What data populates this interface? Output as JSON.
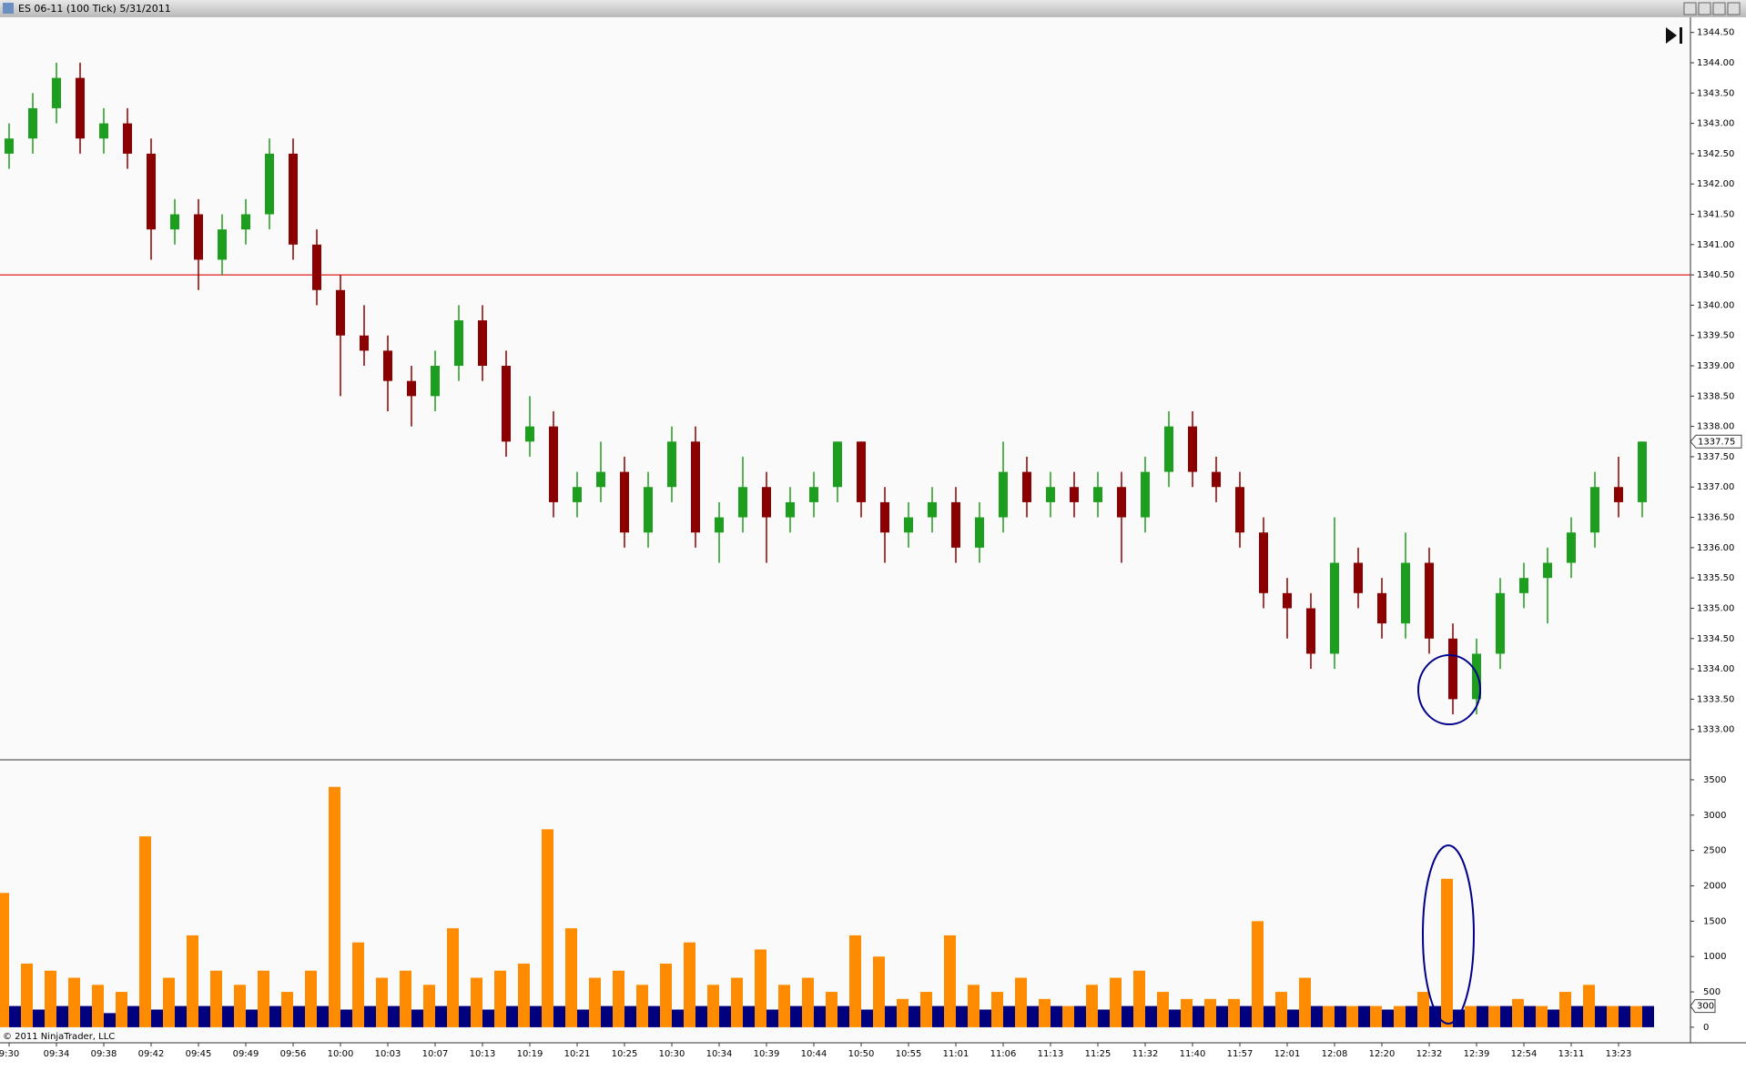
{
  "window": {
    "title": "ES 06-11 (100 Tick)  5/31/2011",
    "copyright": "© 2011 NinjaTrader, LLC"
  },
  "chart_data": [
    {
      "type": "candlestick",
      "ylim": [
        1332.5,
        1344.75
      ],
      "yticks": [
        {
          "value": 1333,
          "label": "1333.00"
        },
        {
          "value": 1333.5,
          "label": "1333.50"
        },
        {
          "value": 1334,
          "label": "1334.00"
        },
        {
          "value": 1334.5,
          "label": "1334.50"
        },
        {
          "value": 1335,
          "label": "1335.00"
        },
        {
          "value": 1335.5,
          "label": "1335.50"
        },
        {
          "value": 1336,
          "label": "1336.00"
        },
        {
          "value": 1336.5,
          "label": "1336.50"
        },
        {
          "value": 1337,
          "label": "1337.00"
        },
        {
          "value": 1337.5,
          "label": "1337.50"
        },
        {
          "value": 1338,
          "label": "1338.00"
        },
        {
          "value": 1338.5,
          "label": "1338.50"
        },
        {
          "value": 1339,
          "label": "1339.00"
        },
        {
          "value": 1339.5,
          "label": "1339.50"
        },
        {
          "value": 1340,
          "label": "1340.00"
        },
        {
          "value": 1340.5,
          "label": "1340.50"
        },
        {
          "value": 1341,
          "label": "1341.00"
        },
        {
          "value": 1341.5,
          "label": "1341.50"
        },
        {
          "value": 1342,
          "label": "1342.00"
        },
        {
          "value": 1342.5,
          "label": "1342.50"
        },
        {
          "value": 1343,
          "label": "1343.00"
        },
        {
          "value": 1343.5,
          "label": "1343.50"
        },
        {
          "value": 1344,
          "label": "1344.00"
        },
        {
          "value": 1344.5,
          "label": "1344.50"
        }
      ],
      "up_color": "#1e9e1e",
      "down_color": "#8b0000",
      "reference_line": {
        "value": 1340.5,
        "color": "#e02020"
      },
      "last_price": {
        "value": 1337.75,
        "label": "1337.75"
      },
      "ohlc": [
        [
          1342.5,
          1343,
          1342.25,
          1342.75
        ],
        [
          1342.75,
          1343.5,
          1342.5,
          1343.25
        ],
        [
          1343.25,
          1344,
          1343,
          1343.75
        ],
        [
          1343.75,
          1344,
          1342.5,
          1342.75
        ],
        [
          1342.75,
          1343.25,
          1342.5,
          1343
        ],
        [
          1343,
          1343.25,
          1342.25,
          1342.5
        ],
        [
          1342.5,
          1342.75,
          1340.75,
          1341.25
        ],
        [
          1341.25,
          1341.75,
          1341,
          1341.5
        ],
        [
          1341.5,
          1341.75,
          1340.25,
          1340.75
        ],
        [
          1340.75,
          1341.5,
          1340.5,
          1341.25
        ],
        [
          1341.25,
          1341.75,
          1341,
          1341.5
        ],
        [
          1341.5,
          1342.75,
          1341.25,
          1342.5
        ],
        [
          1342.5,
          1342.75,
          1340.75,
          1341
        ],
        [
          1341,
          1341.25,
          1340,
          1340.25
        ],
        [
          1340.25,
          1340.5,
          1338.5,
          1339.5
        ],
        [
          1339.5,
          1340,
          1339,
          1339.25
        ],
        [
          1339.25,
          1339.5,
          1338.25,
          1338.75
        ],
        [
          1338.75,
          1339,
          1338,
          1338.5
        ],
        [
          1338.5,
          1339.25,
          1338.25,
          1339
        ],
        [
          1339,
          1340,
          1338.75,
          1339.75
        ],
        [
          1339.75,
          1340,
          1338.75,
          1339
        ],
        [
          1339,
          1339.25,
          1337.5,
          1337.75
        ],
        [
          1337.75,
          1338.5,
          1337.5,
          1338
        ],
        [
          1338,
          1338.25,
          1336.5,
          1336.75
        ],
        [
          1336.75,
          1337.25,
          1336.5,
          1337
        ],
        [
          1337,
          1337.75,
          1336.75,
          1337.25
        ],
        [
          1337.25,
          1337.5,
          1336,
          1336.25
        ],
        [
          1336.25,
          1337.25,
          1336,
          1337
        ],
        [
          1337,
          1338,
          1336.75,
          1337.75
        ],
        [
          1337.75,
          1338,
          1336,
          1336.25
        ],
        [
          1336.25,
          1336.75,
          1335.75,
          1336.5
        ],
        [
          1336.5,
          1337.5,
          1336.25,
          1337
        ],
        [
          1337,
          1337.25,
          1335.75,
          1336.5
        ],
        [
          1336.5,
          1337,
          1336.25,
          1336.75
        ],
        [
          1336.75,
          1337.25,
          1336.5,
          1337
        ],
        [
          1337,
          1337.75,
          1336.75,
          1337.75
        ],
        [
          1337.75,
          1337.75,
          1336.5,
          1336.75
        ],
        [
          1336.75,
          1337,
          1335.75,
          1336.25
        ],
        [
          1336.25,
          1336.75,
          1336,
          1336.5
        ],
        [
          1336.5,
          1337,
          1336.25,
          1336.75
        ],
        [
          1336.75,
          1337,
          1335.75,
          1336
        ],
        [
          1336,
          1336.75,
          1335.75,
          1336.5
        ],
        [
          1336.5,
          1337.75,
          1336.25,
          1337.25
        ],
        [
          1337.25,
          1337.5,
          1336.5,
          1336.75
        ],
        [
          1336.75,
          1337.25,
          1336.5,
          1337
        ],
        [
          1337,
          1337.25,
          1336.5,
          1336.75
        ],
        [
          1336.75,
          1337.25,
          1336.5,
          1337
        ],
        [
          1337,
          1337.25,
          1335.75,
          1336.5
        ],
        [
          1336.5,
          1337.5,
          1336.25,
          1337.25
        ],
        [
          1337.25,
          1338.25,
          1337,
          1338
        ],
        [
          1338,
          1338.25,
          1337,
          1337.25
        ],
        [
          1337.25,
          1337.5,
          1336.75,
          1337
        ],
        [
          1337,
          1337.25,
          1336,
          1336.25
        ],
        [
          1336.25,
          1336.5,
          1335,
          1335.25
        ],
        [
          1335.25,
          1335.5,
          1334.5,
          1335
        ],
        [
          1335,
          1335.25,
          1334,
          1334.25
        ],
        [
          1334.25,
          1336.5,
          1334,
          1335.75
        ],
        [
          1335.75,
          1336,
          1335,
          1335.25
        ],
        [
          1335.25,
          1335.5,
          1334.5,
          1334.75
        ],
        [
          1334.75,
          1336.25,
          1334.5,
          1335.75
        ],
        [
          1335.75,
          1336,
          1334.25,
          1334.5
        ],
        [
          1334.5,
          1334.75,
          1333.25,
          1333.5
        ],
        [
          1333.5,
          1334.5,
          1333.25,
          1334.25
        ],
        [
          1334.25,
          1335.5,
          1334,
          1335.25
        ],
        [
          1335.25,
          1335.75,
          1335,
          1335.5
        ],
        [
          1335.5,
          1336,
          1334.75,
          1335.75
        ],
        [
          1335.75,
          1336.5,
          1335.5,
          1336.25
        ],
        [
          1336.25,
          1337.25,
          1336,
          1337
        ],
        [
          1337,
          1337.5,
          1336.5,
          1336.75
        ],
        [
          1336.75,
          1337.75,
          1336.5,
          1337.75
        ]
      ],
      "time_labels": [
        "9:30",
        "09:34",
        "09:38",
        "09:42",
        "09:45",
        "09:49",
        "09:56",
        "10:00",
        "10:03",
        "10:07",
        "10:13",
        "10:19",
        "10:21",
        "10:25",
        "10:30",
        "10:34",
        "10:39",
        "10:44",
        "10:50",
        "10:55",
        "11:01",
        "11:06",
        "11:13",
        "11:25",
        "11:32",
        "11:40",
        "11:57",
        "12:01",
        "12:08",
        "12:20",
        "12:32",
        "12:39",
        "12:54",
        "13:11",
        "13:23"
      ]
    },
    {
      "type": "volume",
      "ylim": [
        -220,
        3770
      ],
      "yticks": [
        0,
        500,
        1000,
        1500,
        2000,
        2500,
        3000,
        3500
      ],
      "last_volume": 300,
      "series": [
        {
          "color": "#ff8c00",
          "values": [
            1900,
            900,
            800,
            700,
            600,
            500,
            2700,
            700,
            1300,
            800,
            600,
            800,
            500,
            800,
            3400,
            1200,
            700,
            800,
            600,
            1400,
            700,
            800,
            900,
            2800,
            1400,
            700,
            800,
            600,
            900,
            1200,
            600,
            700,
            1100,
            600,
            700,
            500,
            1300,
            1000,
            400,
            500,
            1300,
            600,
            500,
            700,
            400,
            300,
            600,
            700,
            800,
            500,
            400,
            400,
            400,
            1500,
            500,
            700,
            300,
            300,
            300,
            300,
            500,
            2100,
            300,
            300,
            400,
            300,
            500,
            600,
            300,
            300
          ]
        },
        {
          "color": "#00007f",
          "values": [
            300,
            250,
            300,
            300,
            200,
            300,
            250,
            300,
            300,
            300,
            250,
            300,
            300,
            300,
            250,
            300,
            300,
            250,
            300,
            300,
            250,
            300,
            300,
            300,
            250,
            300,
            300,
            300,
            250,
            300,
            300,
            300,
            250,
            300,
            300,
            300,
            250,
            300,
            300,
            300,
            300,
            250,
            300,
            300,
            300,
            300,
            250,
            300,
            300,
            250,
            300,
            300,
            300,
            300,
            250,
            300,
            300,
            300,
            250,
            300,
            300,
            250,
            300,
            300,
            300,
            250,
            300,
            300,
            300,
            300
          ]
        }
      ]
    }
  ]
}
